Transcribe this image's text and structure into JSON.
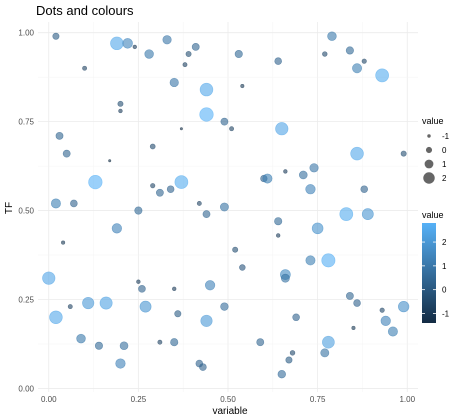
{
  "chart_data": {
    "type": "scatter",
    "title": "Dots and colours",
    "xlabel": "variable",
    "ylabel": "TF",
    "xlim": [
      -0.03,
      1.03
    ],
    "ylim": [
      -0.01,
      1.03
    ],
    "x_ticks": [
      0.0,
      0.25,
      0.5,
      0.75,
      1.0
    ],
    "x_tick_labels": [
      "0.00",
      "0.25",
      "0.50",
      "0.75",
      "1.00"
    ],
    "y_ticks": [
      0.0,
      0.25,
      0.5,
      0.75,
      1.0
    ],
    "y_tick_labels": [
      "0.00",
      "0.25",
      "0.50",
      "0.75",
      "1.00"
    ],
    "grid": true,
    "size_legend": {
      "title": "value",
      "values": [
        -1,
        0,
        1,
        2
      ],
      "labels": [
        "-1",
        "0",
        "1",
        "2"
      ]
    },
    "color_legend": {
      "title": "value",
      "min": -1.4,
      "max": 2.8,
      "ticks": [
        2,
        1,
        0,
        -1
      ],
      "labels": [
        "2",
        "1",
        "0",
        "-1"
      ],
      "low_color": "#132B43",
      "high_color": "#56B1F7"
    },
    "point_opacity": 0.6,
    "points": [
      {
        "x": 0.02,
        "y": 0.99,
        "v": 0.1
      },
      {
        "x": 0.1,
        "y": 0.9,
        "v": -0.7
      },
      {
        "x": 0.19,
        "y": 0.97,
        "v": 2.5
      },
      {
        "x": 0.22,
        "y": 0.97,
        "v": 1.4
      },
      {
        "x": 0.24,
        "y": 0.96,
        "v": -0.9
      },
      {
        "x": 0.28,
        "y": 0.94,
        "v": 1.0
      },
      {
        "x": 0.33,
        "y": 0.98,
        "v": 0.9
      },
      {
        "x": 0.38,
        "y": 0.91,
        "v": -0.7
      },
      {
        "x": 0.39,
        "y": 0.94,
        "v": -0.3
      },
      {
        "x": 0.41,
        "y": 0.96,
        "v": 0.4
      },
      {
        "x": 0.53,
        "y": 0.94,
        "v": 0.5
      },
      {
        "x": 0.64,
        "y": 0.92,
        "v": 0.3
      },
      {
        "x": 0.77,
        "y": 0.94,
        "v": -0.5
      },
      {
        "x": 0.79,
        "y": 0.99,
        "v": 1.0
      },
      {
        "x": 0.84,
        "y": 0.95,
        "v": 0.5
      },
      {
        "x": 0.86,
        "y": 0.9,
        "v": 1.2
      },
      {
        "x": 0.88,
        "y": 0.92,
        "v": -0.6
      },
      {
        "x": 0.93,
        "y": 0.88,
        "v": 2.6
      },
      {
        "x": 0.35,
        "y": 0.86,
        "v": 0.9
      },
      {
        "x": 0.44,
        "y": 0.84,
        "v": 2.5
      },
      {
        "x": 0.54,
        "y": 0.85,
        "v": -1.0
      },
      {
        "x": 0.2,
        "y": 0.8,
        "v": -0.3
      },
      {
        "x": 0.2,
        "y": 0.78,
        "v": -0.9
      },
      {
        "x": 0.44,
        "y": 0.77,
        "v": 2.8
      },
      {
        "x": 0.49,
        "y": 0.75,
        "v": 0.4
      },
      {
        "x": 0.51,
        "y": 0.73,
        "v": -0.7
      },
      {
        "x": 0.37,
        "y": 0.73,
        "v": -1.4
      },
      {
        "x": 0.65,
        "y": 0.73,
        "v": 2.4
      },
      {
        "x": 0.03,
        "y": 0.71,
        "v": 0.4
      },
      {
        "x": 0.05,
        "y": 0.66,
        "v": 0.4
      },
      {
        "x": 0.29,
        "y": 0.68,
        "v": -0.4
      },
      {
        "x": 0.66,
        "y": 0.61,
        "v": -0.9
      },
      {
        "x": 0.74,
        "y": 0.62,
        "v": 0.9
      },
      {
        "x": 0.71,
        "y": 0.6,
        "v": 0.7
      },
      {
        "x": 0.86,
        "y": 0.66,
        "v": 2.5
      },
      {
        "x": 0.99,
        "y": 0.66,
        "v": -0.3
      },
      {
        "x": 0.17,
        "y": 0.64,
        "v": -1.4
      },
      {
        "x": 0.13,
        "y": 0.58,
        "v": 2.8
      },
      {
        "x": 0.29,
        "y": 0.57,
        "v": -0.6
      },
      {
        "x": 0.31,
        "y": 0.55,
        "v": 0.4
      },
      {
        "x": 0.34,
        "y": 0.56,
        "v": 0.3
      },
      {
        "x": 0.37,
        "y": 0.58,
        "v": 2.6
      },
      {
        "x": 0.6,
        "y": 0.59,
        "v": 0.2
      },
      {
        "x": 0.61,
        "y": 0.59,
        "v": 1.2
      },
      {
        "x": 0.73,
        "y": 0.56,
        "v": 1.3
      },
      {
        "x": 0.88,
        "y": 0.56,
        "v": 0.3
      },
      {
        "x": 0.02,
        "y": 0.52,
        "v": 1.2
      },
      {
        "x": 0.07,
        "y": 0.52,
        "v": 0.3
      },
      {
        "x": 0.25,
        "y": 0.5,
        "v": 0.5
      },
      {
        "x": 0.42,
        "y": 0.52,
        "v": -0.7
      },
      {
        "x": 0.44,
        "y": 0.49,
        "v": 0.4
      },
      {
        "x": 0.49,
        "y": 0.51,
        "v": 0.8
      },
      {
        "x": 0.64,
        "y": 0.47,
        "v": 0.5
      },
      {
        "x": 0.64,
        "y": 0.43,
        "v": -0.9
      },
      {
        "x": 0.75,
        "y": 0.45,
        "v": 1.8
      },
      {
        "x": 0.83,
        "y": 0.49,
        "v": 2.6
      },
      {
        "x": 0.89,
        "y": 0.49,
        "v": 1.9
      },
      {
        "x": 0.19,
        "y": 0.45,
        "v": 1.3
      },
      {
        "x": 0.04,
        "y": 0.41,
        "v": -1.0
      },
      {
        "x": 0.52,
        "y": 0.39,
        "v": -0.3
      },
      {
        "x": 0.54,
        "y": 0.34,
        "v": -0.1
      },
      {
        "x": 0.73,
        "y": 0.36,
        "v": 1.2
      },
      {
        "x": 0.78,
        "y": 0.36,
        "v": 2.7
      },
      {
        "x": 0.66,
        "y": 0.32,
        "v": 1.5
      },
      {
        "x": 0.66,
        "y": 0.31,
        "v": 0.8
      },
      {
        "x": 0.0,
        "y": 0.31,
        "v": 2.4
      },
      {
        "x": 0.25,
        "y": 0.3,
        "v": -0.9
      },
      {
        "x": 0.26,
        "y": 0.28,
        "v": 0.3
      },
      {
        "x": 0.35,
        "y": 0.28,
        "v": -0.9
      },
      {
        "x": 0.45,
        "y": 0.29,
        "v": 1.3
      },
      {
        "x": 0.11,
        "y": 0.24,
        "v": 2.0
      },
      {
        "x": 0.16,
        "y": 0.24,
        "v": 2.3
      },
      {
        "x": 0.06,
        "y": 0.23,
        "v": -0.7
      },
      {
        "x": 0.27,
        "y": 0.23,
        "v": 1.9
      },
      {
        "x": 0.49,
        "y": 0.23,
        "v": 0.6
      },
      {
        "x": 0.84,
        "y": 0.26,
        "v": 0.4
      },
      {
        "x": 0.86,
        "y": 0.24,
        "v": 0.3
      },
      {
        "x": 0.93,
        "y": 0.22,
        "v": -0.6
      },
      {
        "x": 0.99,
        "y": 0.23,
        "v": 1.7
      },
      {
        "x": 0.02,
        "y": 0.2,
        "v": 2.5
      },
      {
        "x": 0.36,
        "y": 0.21,
        "v": 0.1
      },
      {
        "x": 0.44,
        "y": 0.19,
        "v": 2.0
      },
      {
        "x": 0.69,
        "y": 0.2,
        "v": 0.3
      },
      {
        "x": 0.94,
        "y": 0.19,
        "v": 1.3
      },
      {
        "x": 0.96,
        "y": 0.16,
        "v": 1.2
      },
      {
        "x": 0.85,
        "y": 0.17,
        "v": -1.0
      },
      {
        "x": 0.09,
        "y": 0.14,
        "v": 1.0
      },
      {
        "x": 0.14,
        "y": 0.12,
        "v": 0.5
      },
      {
        "x": 0.21,
        "y": 0.12,
        "v": 0.7
      },
      {
        "x": 0.31,
        "y": 0.13,
        "v": -0.7
      },
      {
        "x": 0.35,
        "y": 0.13,
        "v": 0.5
      },
      {
        "x": 0.59,
        "y": 0.13,
        "v": 0.4
      },
      {
        "x": 0.77,
        "y": 0.1,
        "v": 0.8
      },
      {
        "x": 0.78,
        "y": 0.13,
        "v": 2.2
      },
      {
        "x": 0.2,
        "y": 0.07,
        "v": 1.3
      },
      {
        "x": 0.42,
        "y": 0.07,
        "v": 0.3
      },
      {
        "x": 0.43,
        "y": 0.06,
        "v": 0.3
      },
      {
        "x": 0.67,
        "y": 0.08,
        "v": 0.1
      },
      {
        "x": 0.68,
        "y": 0.1,
        "v": -0.5
      },
      {
        "x": 0.65,
        "y": 0.04,
        "v": 0.6
      }
    ]
  }
}
